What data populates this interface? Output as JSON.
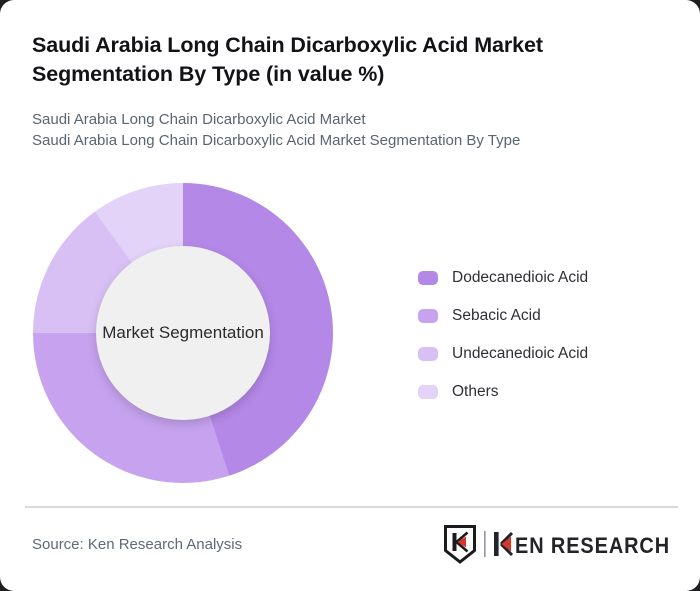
{
  "header": {
    "title": "Saudi Arabia Long Chain Dicarboxylic Acid Market Segmentation By Type (in value %)",
    "subtitle_line1": "Saudi Arabia Long Chain Dicarboxylic Acid Market",
    "subtitle_line2": "Saudi Arabia Long Chain Dicarboxylic Acid Market Segmentation By Type"
  },
  "chart_data": {
    "type": "pie",
    "subtype": "donut",
    "title": "Saudi Arabia Long Chain Dicarboxylic Acid Market Segmentation By Type (in value %)",
    "center_label": "Market Segmentation",
    "unit": "value %",
    "labels": [
      "Dodecanedioic Acid",
      "Sebacic Acid",
      "Undecanedioic Acid",
      "Others"
    ],
    "values": [
      45,
      30,
      15,
      10
    ],
    "colors": [
      "#b488e7",
      "#c7a3ef",
      "#d8c0f4",
      "#e3d3f8"
    ],
    "start_angle_deg": 0,
    "direction": "clockwise",
    "legend_position": "right",
    "hole_color": "#f0f0f0"
  },
  "footer": {
    "source": "Source: Ken Research Analysis",
    "logo_text": "KEN RESEARCH",
    "logo_text_after_k": "EN RESEARCH",
    "logo_accent_color": "#d8352c",
    "logo_text_color": "#232328"
  }
}
